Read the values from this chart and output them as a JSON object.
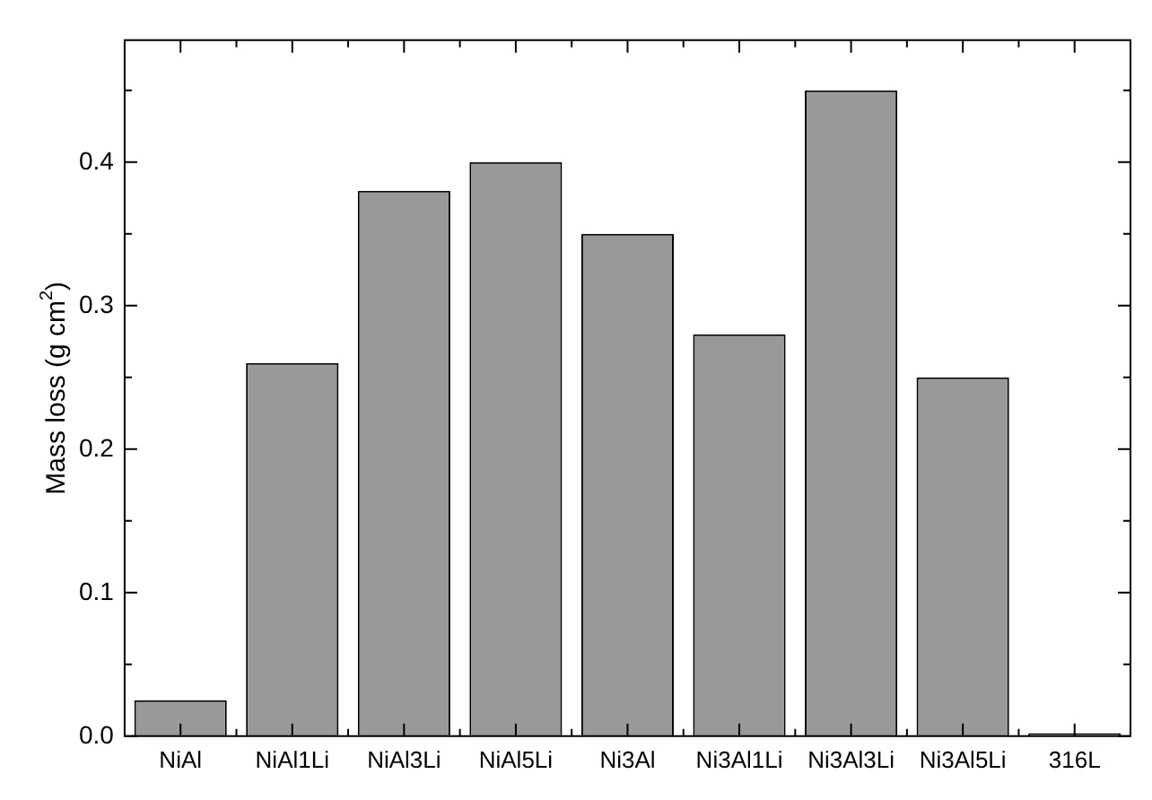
{
  "chart_data": {
    "type": "bar",
    "ylabel": "Mass loss (g cm$^{2}$)",
    "categories": [
      "NiAl",
      "NiAl1Li",
      "NiAl3Li",
      "NiAl5Li",
      "Ni3Al",
      "Ni3Al1Li",
      "Ni3Al3Li",
      "Ni3Al5Li",
      "316L"
    ],
    "values": [
      0.025,
      0.26,
      0.38,
      0.4,
      0.35,
      0.28,
      0.45,
      0.25,
      0.002
    ],
    "color": "#999999",
    "ylim": [
      0,
      0.485
    ],
    "yticks": [
      {
        "value": 0,
        "label": "0.0"
      },
      {
        "value": 0.05,
        "label": null
      },
      {
        "value": 0.1,
        "label": "0.1"
      },
      {
        "value": 0.15,
        "label": null
      },
      {
        "value": 0.2,
        "label": "0.2"
      },
      {
        "value": 0.25,
        "label": null
      },
      {
        "value": 0.3,
        "label": "0.3"
      },
      {
        "value": 0.35,
        "label": null
      },
      {
        "value": 0.4,
        "label": "0.4"
      },
      {
        "value": 0.45,
        "label": null
      }
    ],
    "grid": false,
    "legend": false
  }
}
